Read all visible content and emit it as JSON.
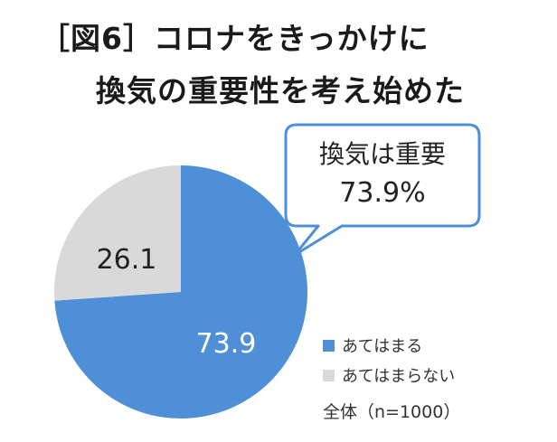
{
  "title_line1": "［図6］コロナをきっかけに",
  "title_line2": "換気の重要性を考え始めた",
  "callout": {
    "line1": "換気は重要",
    "line2": "73.9%"
  },
  "chart_data": {
    "type": "pie",
    "slices": [
      {
        "name": "あてはまる",
        "value": 73.9,
        "label": "73.9",
        "color": "#4e8fd8"
      },
      {
        "name": "あてはまらない",
        "value": 26.1,
        "label": "26.1",
        "color": "#d9d9d9"
      }
    ]
  },
  "note": "全体（n=1000）",
  "colors": {
    "callout_border": "#4e8fd8"
  }
}
